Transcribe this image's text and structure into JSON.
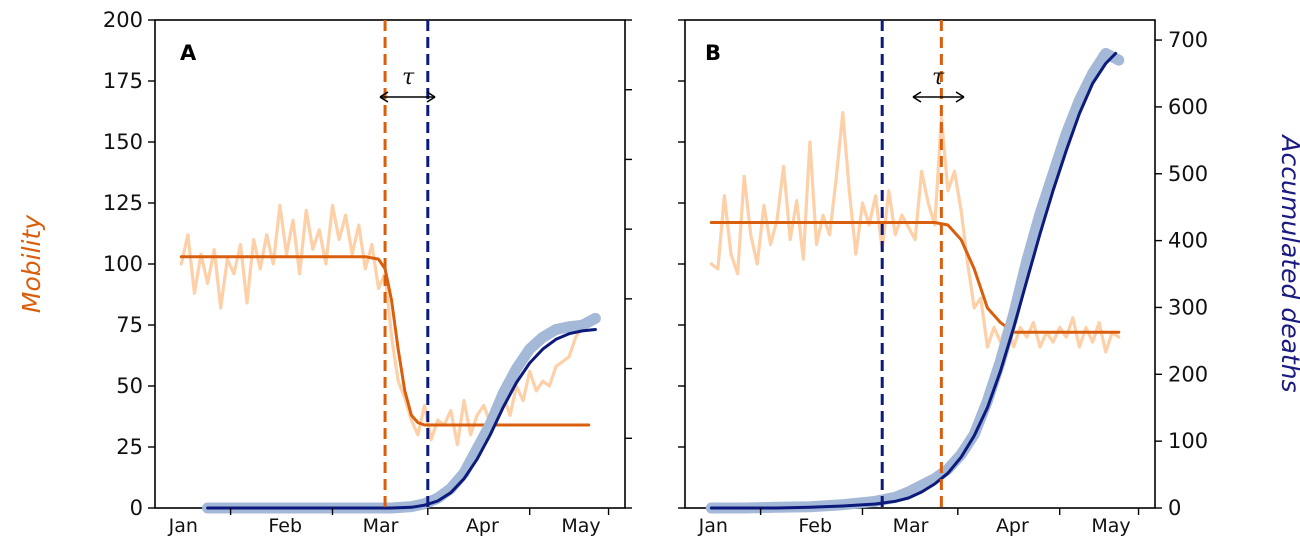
{
  "colors": {
    "mobility_raw": "#fdd0a8",
    "mobility_fit": "#d95f0e",
    "deaths_raw": "#a4b8d8",
    "deaths_fit": "#0c1a7c",
    "orange_dashed": "#d95f0e",
    "blue_dashed": "#0c1a7c"
  },
  "axes": {
    "left_label": "Mobility",
    "right_label": "Accumulated deaths",
    "tau_symbol": "τ"
  },
  "chart_data": [
    {
      "panel": "A",
      "type": "line",
      "xlabel": "",
      "x_ticks": [
        "Jan",
        "Feb",
        "Mar",
        "Apr",
        "May"
      ],
      "y_left_ticks": [
        "0",
        "25",
        "50",
        "75",
        "100",
        "125",
        "150",
        "175",
        "200"
      ],
      "ylim_left": [
        0,
        200
      ],
      "ylim_right": [
        0,
        700
      ],
      "right_ticks_labeled": false,
      "series": [
        {
          "name": "",
          "kind": "mobility_raw",
          "x_days": [
            0,
            2,
            4,
            6,
            8,
            10,
            12,
            14,
            16,
            18,
            20,
            22,
            24,
            26,
            28,
            30,
            32,
            34,
            36,
            38,
            40,
            42,
            44,
            46,
            48,
            50,
            52,
            54,
            56,
            58,
            60,
            62,
            64,
            66,
            68,
            70,
            72,
            74,
            76,
            78,
            80,
            82,
            84,
            86,
            88,
            90,
            92,
            94,
            96,
            98,
            100,
            102,
            104,
            106,
            108,
            110,
            112,
            114,
            116,
            118,
            120,
            122,
            124
          ],
          "values": [
            100,
            112,
            88,
            104,
            92,
            106,
            82,
            102,
            96,
            108,
            84,
            110,
            98,
            112,
            100,
            124,
            104,
            118,
            96,
            122,
            106,
            114,
            100,
            124,
            110,
            120,
            104,
            116,
            98,
            108,
            90,
            96,
            70,
            52,
            45,
            36,
            30,
            42,
            28,
            36,
            34,
            40,
            26,
            44,
            30,
            38,
            42,
            35,
            40,
            46,
            38,
            50,
            44,
            56,
            48,
            52,
            50,
            58,
            60,
            62,
            70,
            74,
            78
          ]
        },
        {
          "name": "",
          "kind": "mobility_fit",
          "x_days": [
            0,
            4,
            8,
            12,
            16,
            20,
            24,
            28,
            32,
            36,
            40,
            44,
            48,
            52,
            56,
            60,
            62,
            64,
            66,
            68,
            70,
            72,
            74,
            76,
            80,
            84,
            88,
            92,
            96,
            100,
            104,
            108,
            112,
            116,
            120,
            124
          ],
          "values": [
            103,
            103,
            103,
            103,
            103,
            103,
            103,
            103,
            103,
            103,
            103,
            103,
            103,
            103,
            103,
            102,
            98,
            85,
            65,
            48,
            38,
            35,
            34,
            34,
            34,
            34,
            34,
            34,
            34,
            34,
            34,
            34,
            34,
            34,
            34,
            34
          ]
        },
        {
          "name": "",
          "kind": "deaths_raw",
          "x_days": [
            8,
            20,
            32,
            44,
            56,
            64,
            70,
            74,
            78,
            82,
            86,
            90,
            94,
            98,
            102,
            106,
            110,
            114,
            118,
            122,
            126
          ],
          "values": [
            0,
            0,
            0,
            0,
            0,
            0,
            2,
            6,
            14,
            28,
            50,
            85,
            120,
            165,
            200,
            228,
            245,
            256,
            260,
            262,
            272
          ]
        },
        {
          "name": "",
          "kind": "deaths_fit",
          "x_days": [
            8,
            20,
            32,
            44,
            56,
            64,
            70,
            74,
            78,
            82,
            86,
            90,
            94,
            98,
            102,
            106,
            110,
            114,
            118,
            122,
            126
          ],
          "values": [
            0,
            0,
            0,
            0,
            0,
            0,
            1,
            4,
            10,
            22,
            42,
            70,
            105,
            145,
            180,
            208,
            228,
            242,
            250,
            254,
            256
          ]
        }
      ],
      "vlines": [
        {
          "kind": "orange_dashed",
          "x_day": 62
        },
        {
          "kind": "blue_dashed",
          "x_day": 75
        }
      ]
    },
    {
      "panel": "B",
      "type": "line",
      "xlabel": "",
      "x_ticks": [
        "Jan",
        "Feb",
        "Mar",
        "Apr",
        "May"
      ],
      "y_right_ticks": [
        "0",
        "100",
        "200",
        "300",
        "400",
        "500",
        "600",
        "700"
      ],
      "ylim_left": [
        0,
        200
      ],
      "ylim_right": [
        0,
        730
      ],
      "left_ticks_labeled": false,
      "series": [
        {
          "name": "",
          "kind": "mobility_raw",
          "x_days": [
            0,
            2,
            4,
            6,
            8,
            10,
            12,
            14,
            16,
            18,
            20,
            22,
            24,
            26,
            28,
            30,
            32,
            34,
            36,
            38,
            40,
            42,
            44,
            46,
            48,
            50,
            52,
            54,
            56,
            58,
            60,
            62,
            64,
            66,
            68,
            70,
            72,
            74,
            76,
            78,
            80,
            82,
            84,
            86,
            88,
            90,
            92,
            94,
            96,
            98,
            100,
            102,
            104,
            106,
            108,
            110,
            112,
            114,
            116,
            118,
            120,
            122,
            124
          ],
          "values": [
            100,
            98,
            128,
            104,
            96,
            136,
            112,
            100,
            124,
            108,
            118,
            140,
            110,
            126,
            102,
            150,
            108,
            120,
            112,
            135,
            162,
            130,
            104,
            125,
            116,
            128,
            106,
            130,
            112,
            120,
            115,
            110,
            138,
            125,
            116,
            160,
            130,
            138,
            122,
            100,
            82,
            86,
            66,
            74,
            68,
            76,
            66,
            74,
            70,
            76,
            66,
            72,
            68,
            74,
            70,
            78,
            66,
            74,
            68,
            76,
            64,
            72,
            70
          ]
        },
        {
          "name": "",
          "kind": "mobility_fit",
          "x_days": [
            0,
            10,
            20,
            30,
            40,
            50,
            60,
            64,
            68,
            72,
            76,
            80,
            84,
            88,
            92,
            96,
            100,
            104,
            108,
            112,
            116,
            120,
            124
          ],
          "values": [
            117,
            117,
            117,
            117,
            117,
            117,
            117,
            117,
            117,
            116,
            110,
            98,
            82,
            76,
            72,
            72,
            72,
            72,
            72,
            72,
            72,
            72,
            72
          ]
        },
        {
          "name": "",
          "kind": "deaths_raw",
          "x_days": [
            0,
            10,
            20,
            30,
            40,
            50,
            56,
            60,
            64,
            68,
            72,
            76,
            80,
            84,
            88,
            92,
            96,
            100,
            104,
            108,
            112,
            116,
            120,
            124
          ],
          "values": [
            0,
            0,
            1,
            2,
            5,
            10,
            16,
            24,
            34,
            44,
            58,
            80,
            110,
            160,
            220,
            290,
            370,
            440,
            500,
            560,
            610,
            650,
            680,
            670
          ]
        },
        {
          "name": "",
          "kind": "deaths_fit",
          "x_days": [
            0,
            10,
            20,
            30,
            40,
            50,
            56,
            60,
            64,
            68,
            72,
            76,
            80,
            84,
            88,
            92,
            96,
            100,
            104,
            108,
            112,
            116,
            120,
            123
          ],
          "values": [
            0,
            0,
            0,
            1,
            3,
            6,
            10,
            15,
            24,
            36,
            52,
            76,
            108,
            150,
            205,
            270,
            340,
            410,
            475,
            535,
            590,
            635,
            665,
            680
          ]
        }
      ],
      "vlines": [
        {
          "kind": "blue_dashed",
          "x_day": 52
        },
        {
          "kind": "orange_dashed",
          "x_day": 70
        }
      ]
    }
  ]
}
